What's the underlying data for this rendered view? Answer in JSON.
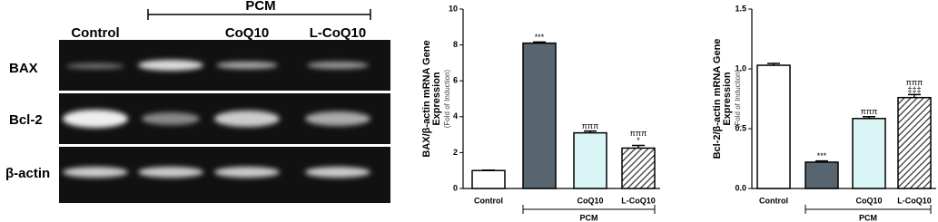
{
  "gel": {
    "group_label": "PCM",
    "lanes": [
      "Control",
      null,
      "CoQ10",
      "L-CoQ10"
    ],
    "rows": [
      "BAX",
      "Bcl-2",
      "β-actin"
    ]
  },
  "chart_data": [
    {
      "type": "bar",
      "ylabel": [
        "BAX/β-actin mRNA Gene",
        "Expression"
      ],
      "ysublabel": "(Fold of Induction)",
      "categories": [
        "Control",
        null,
        "CoQ10",
        "L-CoQ10"
      ],
      "group_label": "PCM",
      "values": [
        1,
        8.1,
        3.1,
        2.25
      ],
      "errors": [
        0.02,
        0.06,
        0.1,
        0.15
      ],
      "colors": [
        "#ffffff",
        "#56656f",
        "#d9f5f5",
        "#ffffff"
      ],
      "patterns": [
        null,
        null,
        null,
        "diagonal"
      ],
      "annotations": [
        [],
        [
          "***"
        ],
        [
          "πππ"
        ],
        [
          "πππ",
          "*"
        ]
      ],
      "ylim": [
        0,
        10
      ],
      "yticks": [
        0,
        2,
        4,
        6,
        8,
        10
      ]
    },
    {
      "type": "bar",
      "ylabel": [
        "Bcl-2/β-actin mRNA Gene",
        "Expression"
      ],
      "ysublabel": "(Fold of Induction)",
      "categories": [
        "Control",
        null,
        "CoQ10",
        "L-CoQ10"
      ],
      "group_label": "PCM",
      "values": [
        1.03,
        0.22,
        0.585,
        0.76
      ],
      "errors": [
        0.015,
        0.01,
        0.015,
        0.025
      ],
      "colors": [
        "#ffffff",
        "#56656f",
        "#d9f5f5",
        "#ffffff"
      ],
      "patterns": [
        null,
        null,
        null,
        "diagonal"
      ],
      "annotations": [
        [],
        [
          "***"
        ],
        [
          "πππ"
        ],
        [
          "πππ",
          "‡‡‡"
        ]
      ],
      "ylim": [
        0,
        1.5
      ],
      "yticks": [
        {
          "value": 0,
          "label": "0.0"
        },
        0.5,
        {
          "value": 1,
          "label": "1.0"
        },
        1.5
      ]
    }
  ]
}
